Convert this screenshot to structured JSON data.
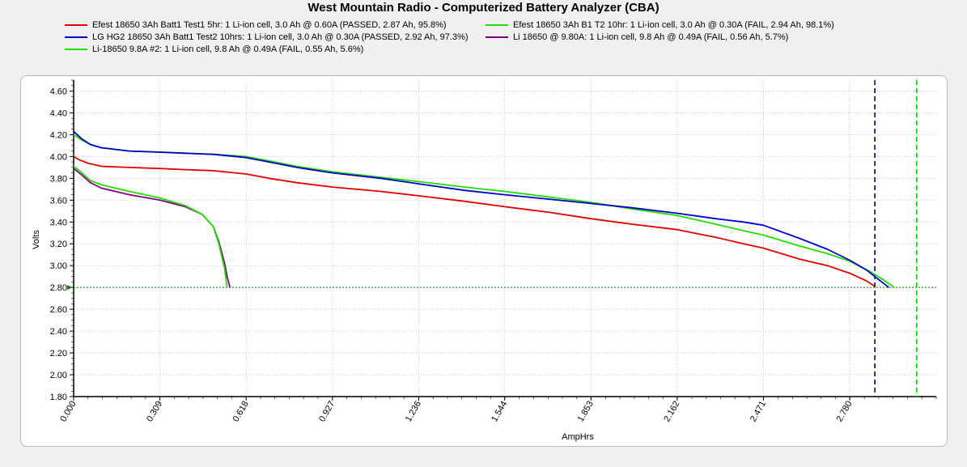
{
  "title": "West Mountain Radio - Computerized Battery Analyzer (CBA)",
  "chart_data": {
    "type": "line",
    "title": "West Mountain Radio - Computerized Battery Analyzer (CBA)",
    "xlabel": "AmpHrs",
    "ylabel": "Volts",
    "xlim": [
      0,
      3.09
    ],
    "ylim": [
      1.8,
      4.7
    ],
    "x_ticks": [
      "0.000",
      "0.309",
      "0.618",
      "0.927",
      "1.236",
      "1.544",
      "1.853",
      "2.162",
      "2.471",
      "2.780"
    ],
    "y_ticks": [
      "1.80",
      "2.00",
      "2.20",
      "2.40",
      "2.60",
      "2.80",
      "3.00",
      "3.20",
      "3.40",
      "3.60",
      "3.80",
      "4.00",
      "4.20",
      "4.40",
      "4.60"
    ],
    "grid": true,
    "legend_position": "top",
    "cutoff_voltage": 2.8,
    "marker_lines": [
      {
        "x": 2.87,
        "color": "#00008b",
        "style": "dashed"
      },
      {
        "x": 3.02,
        "color": "#00cc00",
        "style": "dashed"
      }
    ],
    "series": [
      {
        "name": "Efest 18650 3Ah Batt1 Test1 5hr: 1 Li-ion cell, 3.0 Ah @ 0.60A (PASSED, 2.87 Ah, 95.8%)",
        "color": "#e00000",
        "x": [
          0.0,
          0.02,
          0.05,
          0.1,
          0.2,
          0.309,
          0.4,
          0.5,
          0.618,
          0.7,
          0.8,
          0.927,
          1.1,
          1.236,
          1.4,
          1.544,
          1.7,
          1.853,
          2.0,
          2.162,
          2.3,
          2.4,
          2.471,
          2.6,
          2.7,
          2.78,
          2.84,
          2.87
        ],
        "y": [
          4.0,
          3.97,
          3.94,
          3.91,
          3.9,
          3.89,
          3.88,
          3.87,
          3.84,
          3.8,
          3.76,
          3.72,
          3.68,
          3.64,
          3.59,
          3.54,
          3.49,
          3.43,
          3.38,
          3.33,
          3.26,
          3.2,
          3.16,
          3.06,
          3.0,
          2.93,
          2.86,
          2.81
        ]
      },
      {
        "name": "Efest 18650 3Ah B1 T2 10hr: 1 Li-ion cell, 3.0 Ah @ 0.30A (FAIL, 2.94 Ah, 98.1%)",
        "color": "#22dd00",
        "x": [
          0.0,
          0.03,
          0.06,
          0.1,
          0.2,
          0.309,
          0.4,
          0.5,
          0.618,
          0.7,
          0.8,
          0.927,
          1.1,
          1.236,
          1.4,
          1.544,
          1.7,
          1.853,
          2.0,
          2.162,
          2.3,
          2.4,
          2.471,
          2.6,
          2.7,
          2.78,
          2.85,
          2.9,
          2.94
        ],
        "y": [
          4.2,
          4.15,
          4.11,
          4.08,
          4.05,
          4.04,
          4.03,
          4.02,
          4.0,
          3.96,
          3.91,
          3.86,
          3.81,
          3.77,
          3.72,
          3.68,
          3.63,
          3.58,
          3.52,
          3.46,
          3.38,
          3.32,
          3.28,
          3.18,
          3.11,
          3.04,
          2.95,
          2.87,
          2.8
        ]
      },
      {
        "name": "LG HG2 18650 3Ah Batt1 Test2 10hrs: 1 Li-ion cell, 3.0 Ah @ 0.30A (PASSED, 2.92 Ah, 97.3%)",
        "color": "#0000cc",
        "x": [
          0.0,
          0.03,
          0.06,
          0.1,
          0.2,
          0.309,
          0.4,
          0.5,
          0.618,
          0.7,
          0.8,
          0.927,
          1.1,
          1.236,
          1.4,
          1.544,
          1.7,
          1.853,
          2.0,
          2.162,
          2.3,
          2.4,
          2.471,
          2.6,
          2.7,
          2.78,
          2.84,
          2.88,
          2.92
        ],
        "y": [
          4.23,
          4.16,
          4.11,
          4.08,
          4.05,
          4.04,
          4.03,
          4.02,
          3.99,
          3.95,
          3.9,
          3.85,
          3.8,
          3.75,
          3.69,
          3.65,
          3.61,
          3.57,
          3.53,
          3.48,
          3.43,
          3.4,
          3.37,
          3.25,
          3.15,
          3.05,
          2.96,
          2.88,
          2.8
        ]
      },
      {
        "name": "Li 18650 @ 9.80A: 1 Li-ion cell, 9.8 Ah @ 0.49A (FAIL, 0.56 Ah, 5.7%)",
        "color": "#800080",
        "x": [
          0.0,
          0.03,
          0.06,
          0.1,
          0.15,
          0.2,
          0.309,
          0.4,
          0.46,
          0.5,
          0.52,
          0.54,
          0.55,
          0.56
        ],
        "y": [
          3.89,
          3.83,
          3.76,
          3.71,
          3.68,
          3.65,
          3.6,
          3.54,
          3.47,
          3.36,
          3.22,
          3.03,
          2.9,
          2.8
        ]
      },
      {
        "name": "Li-18650 9.8A #2: 1 Li-ion cell, 9.8 Ah @ 0.49A (FAIL, 0.55 Ah, 5.6%)",
        "color": "#22dd00",
        "x": [
          0.0,
          0.03,
          0.06,
          0.1,
          0.15,
          0.2,
          0.309,
          0.4,
          0.46,
          0.5,
          0.52,
          0.54,
          0.55
        ],
        "y": [
          3.91,
          3.85,
          3.78,
          3.74,
          3.71,
          3.68,
          3.62,
          3.55,
          3.47,
          3.36,
          3.2,
          2.98,
          2.8
        ]
      }
    ]
  }
}
